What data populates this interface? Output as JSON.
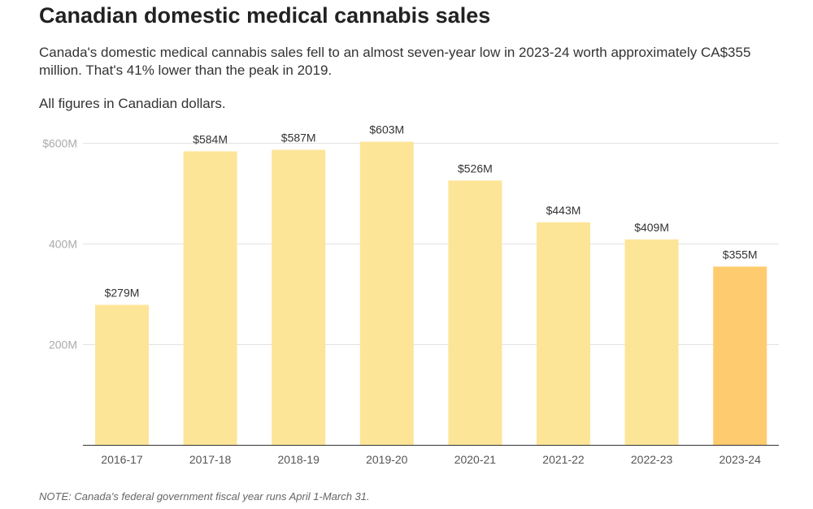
{
  "title": "Canadian domestic medical cannabis sales",
  "subtitle": "Canada's domestic medical cannabis sales fell to an almost seven-year low in 2023-24 worth approximately CA$355 million. That's 41% lower than the peak in 2019.",
  "note": "All figures in Canadian dollars.",
  "footnote": "NOTE: Canada's federal government fiscal year runs April 1-March 31.",
  "chart_data": {
    "type": "bar",
    "categories": [
      "2016-17",
      "2017-18",
      "2018-19",
      "2019-20",
      "2020-21",
      "2021-22",
      "2022-23",
      "2023-24"
    ],
    "values": [
      279,
      584,
      587,
      603,
      526,
      443,
      409,
      355
    ],
    "data_labels": [
      "$279M",
      "$584M",
      "$587M",
      "$603M",
      "$526M",
      "$443M",
      "$409M",
      "$355M"
    ],
    "unit": "million CA$",
    "yticks": [
      200,
      400,
      600
    ],
    "ytick_labels": [
      "200M",
      "400M",
      "$600M"
    ],
    "ylim": [
      0,
      620
    ],
    "grid": true,
    "colors": {
      "bar": "#fde598",
      "highlight": "#fecb6e",
      "grid": "#e2e2e2"
    },
    "highlight_index": 7
  }
}
